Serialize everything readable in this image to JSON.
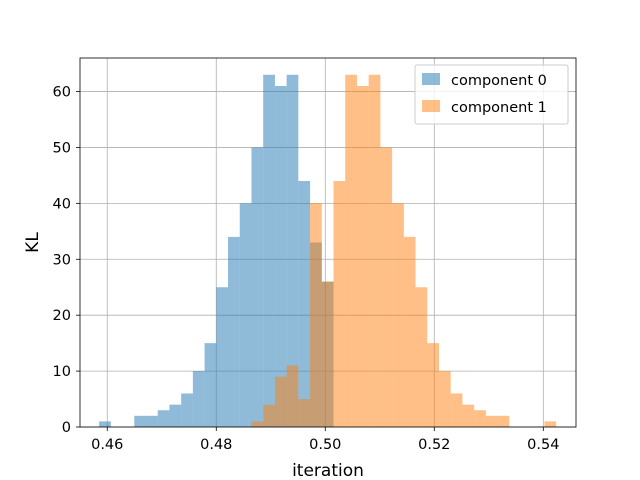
{
  "chart_data": {
    "type": "bar",
    "subtype": "histogram",
    "title": "",
    "xlabel": "iteration",
    "ylabel": "KL",
    "xlim": [
      0.455,
      0.546
    ],
    "ylim": [
      0,
      66
    ],
    "x_ticks": [
      0.46,
      0.48,
      0.5,
      0.52,
      0.54
    ],
    "x_tick_labels": [
      "0.46",
      "0.48",
      "0.50",
      "0.52",
      "0.54"
    ],
    "y_ticks": [
      0,
      10,
      20,
      30,
      40,
      50,
      60
    ],
    "y_tick_labels": [
      "0",
      "10",
      "20",
      "30",
      "40",
      "50",
      "60"
    ],
    "grid": true,
    "legend_position": "top-right",
    "bin_width": 0.00215,
    "series": [
      {
        "name": "component 0",
        "color": "#1f77b4",
        "alpha": 0.5,
        "bin_starts": [
          0.45851,
          0.46066,
          0.46281,
          0.46496,
          0.46711,
          0.46926,
          0.47141,
          0.47356,
          0.47571,
          0.47786,
          0.48001,
          0.48216,
          0.48431,
          0.48646,
          0.48861,
          0.49076,
          0.49291,
          0.49506,
          0.49721,
          0.49936
        ],
        "values": [
          1,
          0,
          0,
          2,
          2,
          3,
          4,
          6,
          10,
          15,
          25,
          34,
          40,
          50,
          63,
          61,
          63,
          44,
          33,
          26
        ]
      },
      {
        "name": "component 1",
        "color": "#ff7f0e",
        "alpha": 0.5,
        "bin_starts": [
          0.48646,
          0.48861,
          0.49076,
          0.49291,
          0.49506,
          0.49721,
          0.49936,
          0.50151,
          0.50366,
          0.50581,
          0.50796,
          0.51011,
          0.51226,
          0.51441,
          0.51656,
          0.51871,
          0.52086,
          0.52301,
          0.52516,
          0.52731,
          0.52946,
          0.53161,
          0.53376,
          0.53591,
          0.53806,
          0.54021
        ],
        "values": [
          1,
          4,
          9,
          11,
          5,
          40,
          26,
          44,
          63,
          61,
          63,
          50,
          40,
          34,
          25,
          15,
          10,
          6,
          4,
          3,
          2,
          2,
          0,
          0,
          0,
          1
        ]
      }
    ]
  },
  "legend": {
    "items": [
      {
        "label": "component 0",
        "color": "#1f77b4"
      },
      {
        "label": "component 1",
        "color": "#ff7f0e"
      }
    ]
  }
}
